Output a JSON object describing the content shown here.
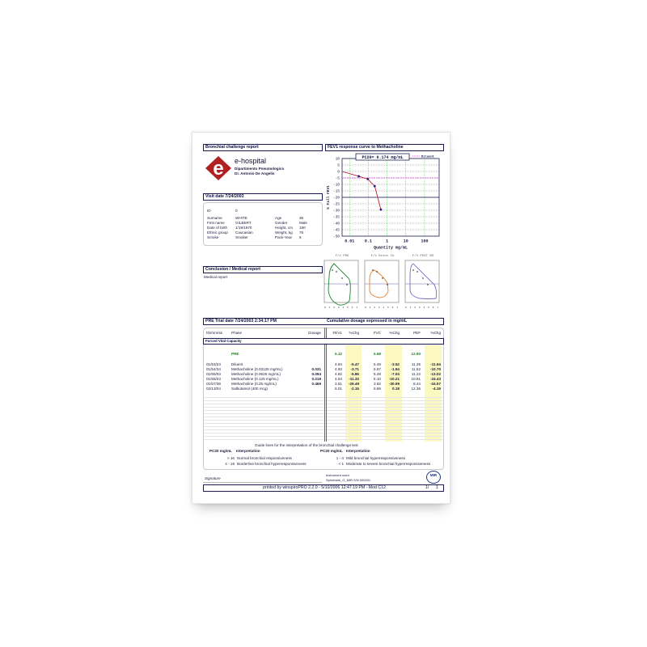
{
  "header": {
    "report_title": "Bronchial challenge report",
    "chart_title": "FEV1 response curve to Methacholine"
  },
  "hospital": {
    "logo_letter": "e",
    "name": "e-hospital",
    "department": "Dipartimento Pneumologico",
    "doctor": "Dr. Antonio De Angelis"
  },
  "visit": {
    "title": "Visit date 7/24/2003"
  },
  "patient": {
    "id_label": "ID",
    "id": "0",
    "left": [
      {
        "label": "Surname",
        "value": "WHITE"
      },
      {
        "label": "First name",
        "value": "GILBERT"
      },
      {
        "label": "Date of birth",
        "value": "1/19/1970"
      },
      {
        "label": "Ethnic group",
        "value": "Caucasian"
      },
      {
        "label": "Smoke",
        "value": "Smoker"
      }
    ],
    "right": [
      {
        "label": "Age",
        "value": "36"
      },
      {
        "label": "Gender",
        "value": "Male"
      },
      {
        "label": "Height, cm",
        "value": "180"
      },
      {
        "label": "Weight, kg",
        "value": "76"
      },
      {
        "label": "Pack-Year",
        "value": "5"
      }
    ]
  },
  "chart_data": {
    "type": "line",
    "pc20_label": "PC20= 0.174  mg/mL",
    "legend": "Diluent",
    "xlabel": "Quantity mg/mL",
    "ylabel": "% Fall FEV1",
    "x_scale": "log",
    "xlim": [
      0.004,
      600
    ],
    "ylim": [
      -50,
      10
    ],
    "xticks": [
      "0.01",
      "0.1",
      "1",
      "10",
      "100"
    ],
    "xtick_values": [
      0.01,
      0.1,
      1,
      10,
      100
    ],
    "yticks": [
      10,
      5,
      0,
      -5,
      -10,
      -15,
      -20,
      -25,
      -30,
      -35,
      -40,
      -45,
      -50
    ],
    "x": [
      0.004,
      0.031,
      0.094,
      0.219,
      0.469
    ],
    "y": [
      0,
      -3.71,
      -5.86,
      -11.33,
      -29.49
    ],
    "diluent_line": -5,
    "threshold_line": -20,
    "grid": true,
    "colors": {
      "curve": "#c02030",
      "points": "#202080",
      "diluent": "#d040d0",
      "grid": "#30c030",
      "threshold": "#101050"
    }
  },
  "loops": [
    {
      "title": "F/V PRE",
      "color": "#208030"
    },
    {
      "title": "F/V Bronc Ch",
      "color": "#e08030"
    },
    {
      "title": "F/V POST BD",
      "color": "#7070c0"
    }
  ],
  "conclusion": {
    "title": "Conclusion / Medical report",
    "text": "Medical report"
  },
  "trial": {
    "title": "PRE Trial date 7/24/2003   2:34:17 PM",
    "dosage_note": "Cumulative dosage expressed in mg/mL"
  },
  "table": {
    "headers": [
      "hh/mm/ss",
      "Phase",
      "Dosage",
      "FEV1",
      "%Chg",
      "FVC",
      "%Chg",
      "PEF",
      "%Chg"
    ],
    "section": "Forced Vital Capacity",
    "pre": {
      "phase": "PRE",
      "fev1": "5.12",
      "fvc": "5.68",
      "pef": "12.90"
    },
    "rows": [
      [
        "01/53/23",
        "Diluent",
        "",
        "4.84",
        "-5.47",
        "5.48",
        "-3.52",
        "11.36",
        "-11.94"
      ],
      [
        "01/54/34",
        "Methacholine (0.03125 mg/mL)",
        "0.031",
        "4.93",
        "-3.71",
        "5.57",
        "-1.94",
        "11.52",
        "-10.70"
      ],
      [
        "01/55/03",
        "Methacholine (0.0625 mg/mL)",
        "0.094",
        "4.82",
        "-5.86",
        "5.28",
        "-7.04",
        "11.22",
        "-13.02"
      ],
      [
        "01/55/23",
        "Methacholine (0.125 mg/mL)",
        "0.219",
        "4.54",
        "-11.33",
        "5.10",
        "-10.21",
        "10.91",
        "-15.43"
      ],
      [
        "01/57/38",
        "Methacholine (0.25 mg/mL)",
        "0.469",
        "3.61",
        "-29.49",
        "3.92",
        "-30.99",
        "8.44",
        "-34.57"
      ],
      [
        "02/13/04",
        "Salbutamol (400 mcg)",
        "",
        "5.01",
        "-2.15",
        "5.69",
        "0.18",
        "12.36",
        "-4.19"
      ]
    ]
  },
  "guide": {
    "title": "Guide lines for the interpretation of the bronchial challenge test",
    "col_pc20": "PC20 mg/mL",
    "col_interp": "Interpretation",
    "left": [
      {
        "range": "> 16",
        "text": "Normal bronchial responsiveness"
      },
      {
        "range": "4 - 16",
        "text": "Borderline bronchial hyperresponsiveness"
      }
    ],
    "right": [
      {
        "range": "1 - 4",
        "text": "Mild bronchial hyperresponsiveness"
      },
      {
        "range": "< 1",
        "text": "Moderate to severe bronchial hyperresponsiveness"
      }
    ]
  },
  "footer": {
    "signature": "Signature",
    "instrument_label": "Instrument used",
    "instrument": "Spirobank_G_MIR S/N 000201",
    "mir_logo": "MIR",
    "printed": "printed by winspiroPRO 2.2.0 - 5/10/2006 12:47:19 PM - Mod C12",
    "page": "1/",
    "pages": "1"
  }
}
